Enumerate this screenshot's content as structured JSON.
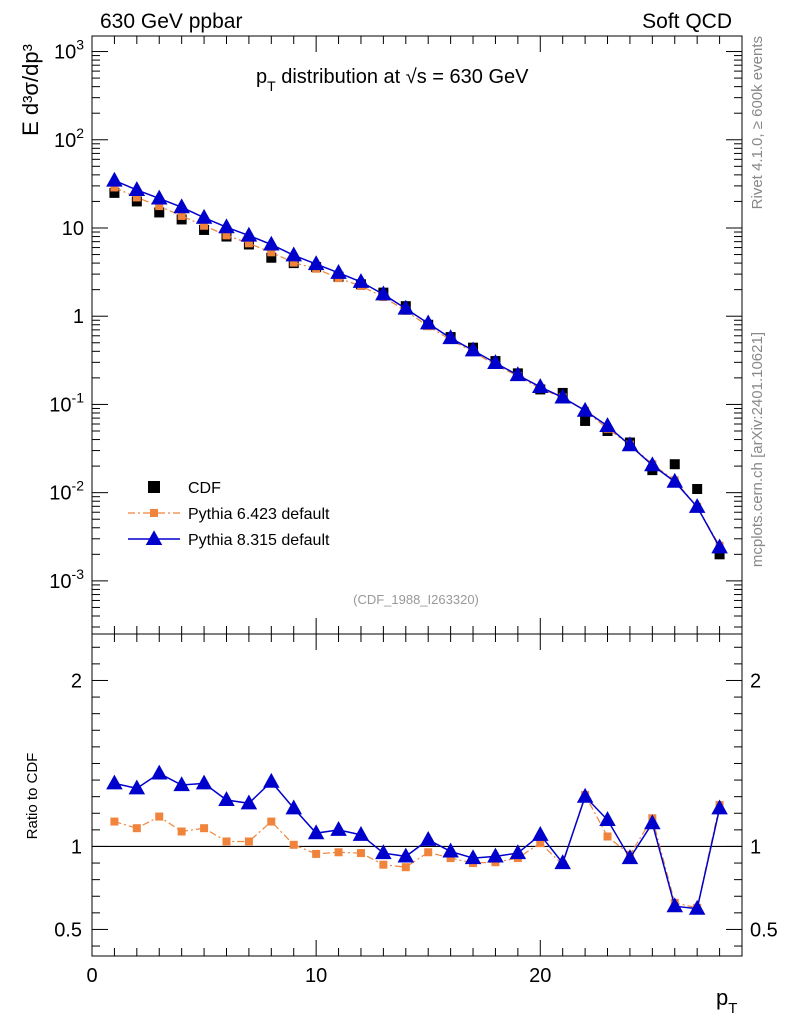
{
  "header": {
    "left": "630 GeV ppbar",
    "right": "Soft QCD"
  },
  "side_labels": {
    "rivet": "Rivet 4.1.0, ≥ 600k events",
    "mcplots": "mcplots.cern.ch [arXiv:2401.10621]"
  },
  "chart_data": [
    {
      "type": "scatter",
      "panel": "main",
      "title": "p_T distribution at √s = 630 GeV",
      "ylabel": "E d³σ/dp³",
      "yscale": "log",
      "xlim": [
        0,
        29
      ],
      "ylim": [
        0.00025,
        1500
      ],
      "ytick_labels": [
        "10^-3",
        "10^-2",
        "10^-1",
        "1",
        "10",
        "10^2",
        "10^3"
      ],
      "analysis_label": "(CDF_1988_I263320)",
      "legend_position": "bottom-left",
      "x": [
        1,
        2,
        3,
        4,
        5,
        6,
        7,
        8,
        9,
        10,
        11,
        12,
        13,
        14,
        15,
        16,
        17,
        18,
        19,
        20,
        21,
        22,
        23,
        24,
        25,
        26,
        27,
        28
      ],
      "series": [
        {
          "name": "CDF",
          "color": "#000000",
          "marker": "square",
          "values": [
            25,
            20,
            15,
            12.5,
            9.5,
            8,
            6.5,
            4.6,
            4.0,
            3.6,
            2.8,
            2.3,
            1.85,
            1.3,
            0.8,
            0.58,
            0.44,
            0.31,
            0.225,
            0.148,
            0.135,
            0.065,
            0.05,
            0.037,
            0.018,
            0.021,
            0.011,
            0.002
          ]
        },
        {
          "name": "Pythia 6.423 default",
          "color": "#f0843c",
          "marker": "square",
          "values": [
            28.8,
            22.2,
            17.7,
            13.7,
            10.6,
            8.25,
            6.7,
            5.3,
            4.05,
            3.45,
            2.7,
            2.2,
            1.65,
            1.15,
            0.77,
            0.54,
            0.395,
            0.28,
            0.21,
            0.151,
            0.12,
            0.085,
            0.053,
            0.035,
            0.021,
            0.0138,
            0.0069,
            0.0025
          ]
        },
        {
          "name": "Pythia 8.315 default",
          "color": "#0000cc",
          "marker": "triangle",
          "values": [
            34.5,
            27,
            21.6,
            17.2,
            13.1,
            10.2,
            8.2,
            6.5,
            4.9,
            3.9,
            3.1,
            2.45,
            1.77,
            1.22,
            0.83,
            0.565,
            0.41,
            0.295,
            0.215,
            0.158,
            0.12,
            0.085,
            0.057,
            0.0345,
            0.0205,
            0.0133,
            0.0069,
            0.0024
          ]
        }
      ]
    },
    {
      "type": "scatter",
      "panel": "ratio",
      "ylabel": "Ratio to CDF",
      "xlabel": "p_T",
      "xlim": [
        0,
        29
      ],
      "ylim": [
        0.34,
        2.28
      ],
      "xtick_labels": [
        "0",
        "10",
        "20"
      ],
      "ytick_labels": [
        "0.5",
        "1",
        "2"
      ],
      "reference_line": 1,
      "x": [
        1,
        2,
        3,
        4,
        5,
        6,
        7,
        8,
        9,
        10,
        11,
        12,
        13,
        14,
        15,
        16,
        17,
        18,
        19,
        20,
        21,
        22,
        23,
        24,
        25,
        26,
        27,
        28
      ],
      "series": [
        {
          "name": "Pythia 6.423 default",
          "color": "#f0843c",
          "marker": "square",
          "values": [
            1.15,
            1.11,
            1.18,
            1.09,
            1.11,
            1.03,
            1.03,
            1.15,
            1.01,
            0.955,
            0.965,
            0.96,
            0.89,
            0.875,
            0.965,
            0.93,
            0.9,
            0.905,
            0.93,
            1.02,
            0.89,
            1.31,
            1.06,
            0.95,
            1.17,
            0.66,
            0.63,
            1.25
          ]
        },
        {
          "name": "Pythia 8.315 default",
          "color": "#0000cc",
          "marker": "triangle",
          "values": [
            1.38,
            1.35,
            1.44,
            1.37,
            1.38,
            1.28,
            1.26,
            1.39,
            1.23,
            1.08,
            1.1,
            1.07,
            0.96,
            0.94,
            1.04,
            0.97,
            0.93,
            0.94,
            0.96,
            1.07,
            0.9,
            1.3,
            1.16,
            0.93,
            1.14,
            0.64,
            0.625,
            1.23
          ]
        }
      ]
    }
  ]
}
